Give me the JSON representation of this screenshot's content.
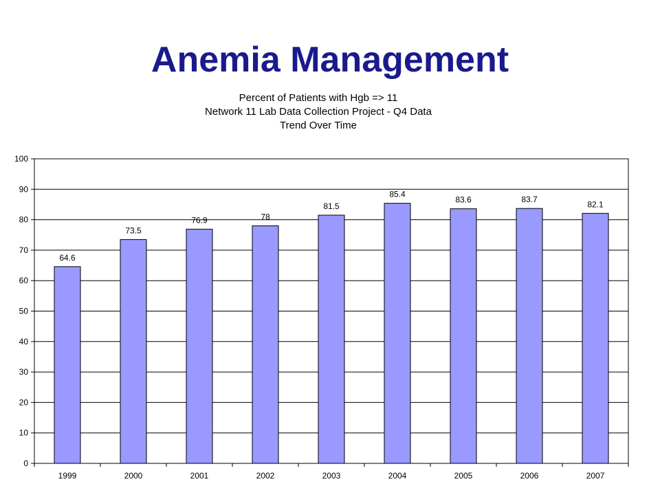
{
  "slide": {
    "title": "Anemia Management"
  },
  "colors": {
    "title": "#1a1a8c",
    "bar_fill": "#9999ff",
    "bar_stroke": "#000000",
    "gridline": "#000000"
  },
  "chart_data": {
    "type": "bar",
    "title_lines": [
      "Percent of Patients with Hgb => 11",
      "Network 11 Lab Data Collection Project - Q4 Data",
      "Trend Over Time"
    ],
    "categories": [
      "1999",
      "2000",
      "2001",
      "2002",
      "2003",
      "2004",
      "2005",
      "2006",
      "2007"
    ],
    "values": [
      64.6,
      73.5,
      76.9,
      78,
      81.5,
      85.4,
      83.6,
      83.7,
      82.1
    ],
    "data_labels": [
      "64.6",
      "73.5",
      "76.9",
      "78",
      "81.5",
      "85.4",
      "83.6",
      "83.7",
      "82.1"
    ],
    "y_ticks": [
      0,
      10,
      20,
      30,
      40,
      50,
      60,
      70,
      80,
      90,
      100
    ],
    "ylim": [
      0,
      100
    ],
    "xlabel": "",
    "ylabel": "",
    "grid": true,
    "legend": "none"
  }
}
